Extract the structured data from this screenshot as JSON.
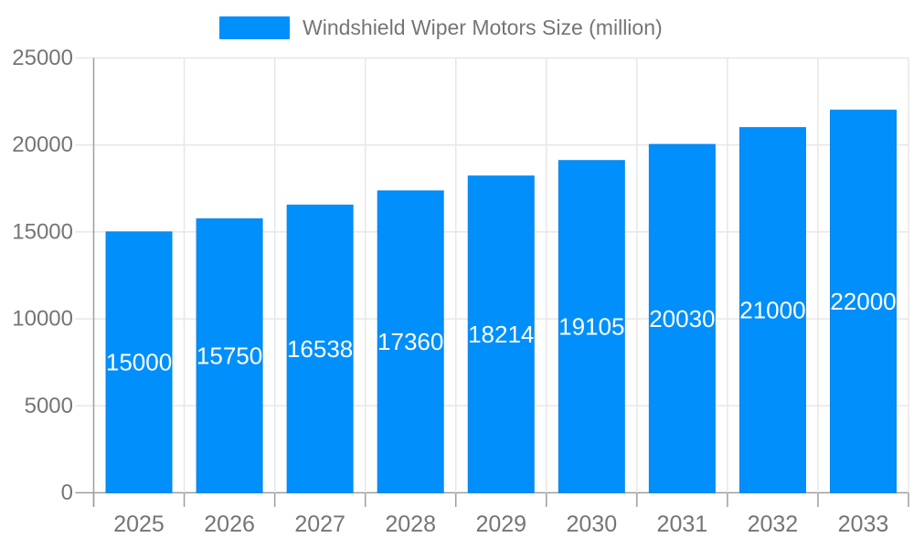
{
  "legend": {
    "label": "Windshield Wiper Motors Size (million)"
  },
  "chart_data": {
    "type": "bar",
    "title": "Windshield Wiper Motors Size (million)",
    "categories": [
      "2025",
      "2026",
      "2027",
      "2028",
      "2029",
      "2030",
      "2031",
      "2032",
      "2033"
    ],
    "values": [
      15000,
      15750,
      16538,
      17360,
      18214,
      19105,
      20030,
      21000,
      22000
    ],
    "xlabel": "",
    "ylabel": "",
    "ylim": [
      0,
      25000
    ],
    "yticks": [
      0,
      5000,
      10000,
      15000,
      20000,
      25000
    ],
    "grid": true,
    "legend_position": "top",
    "bar_labels_inside": true,
    "colors": {
      "bar_fill": "#008FFB",
      "bar_stroke": "#0b86e8",
      "bar_label_text": "#ffffff",
      "axis_line": "#9e9e9e",
      "grid_line": "#e7e7e7",
      "axis_text": "#757575",
      "legend_text": "#757575"
    }
  }
}
